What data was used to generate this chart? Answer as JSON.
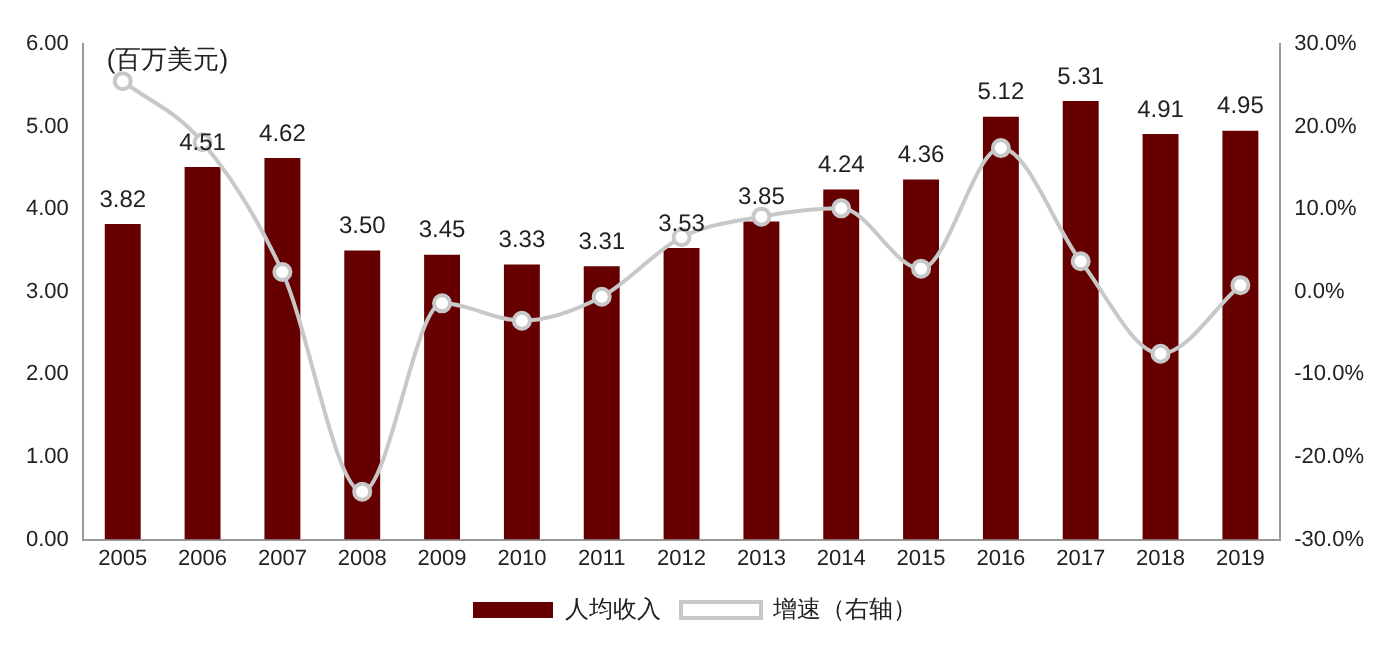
{
  "chart_data": {
    "type": "bar",
    "ylabel": "(百万美元)",
    "categories": [
      "2005",
      "2006",
      "2007",
      "2008",
      "2009",
      "2010",
      "2011",
      "2012",
      "2013",
      "2014",
      "2015",
      "2016",
      "2017",
      "2018",
      "2019"
    ],
    "series": [
      {
        "name": "人均收入",
        "color": "#660000",
        "values": [
          3.82,
          4.51,
          4.62,
          3.5,
          3.45,
          3.33,
          3.31,
          3.53,
          3.85,
          4.24,
          4.36,
          5.12,
          5.31,
          4.91,
          4.95
        ],
        "value_labels": [
          "3.82",
          "4.51",
          "4.62",
          "3.50",
          "3.45",
          "3.33",
          "3.31",
          "3.53",
          "3.85",
          "4.24",
          "4.36",
          "5.12",
          "5.31",
          "4.91",
          "4.95"
        ]
      },
      {
        "name": "增速（右轴）",
        "type": "line",
        "axis": "y2",
        "color": "#c8c8c8",
        "marker": "circle",
        "values": [
          25.5,
          18.1,
          2.4,
          -24.2,
          -1.4,
          -3.5,
          -0.6,
          6.6,
          9.1,
          10.1,
          2.8,
          17.4,
          3.7,
          -7.5,
          0.8
        ]
      }
    ],
    "ylim": [
      0,
      6
    ],
    "yticks": [
      {
        "value": 0,
        "label": "0.00"
      },
      {
        "value": 1,
        "label": "1.00"
      },
      {
        "value": 2,
        "label": "2.00"
      },
      {
        "value": 3,
        "label": "3.00"
      },
      {
        "value": 4,
        "label": "4.00"
      },
      {
        "value": 5,
        "label": "5.00"
      },
      {
        "value": 6,
        "label": "6.00"
      }
    ],
    "y2lim": [
      -30,
      30
    ],
    "y2ticks": [
      {
        "value": -30,
        "label": "-30.0%"
      },
      {
        "value": -20,
        "label": "-20.0%"
      },
      {
        "value": -10,
        "label": "-10.0%"
      },
      {
        "value": 0,
        "label": "0.0%"
      },
      {
        "value": 10,
        "label": "10.0%"
      },
      {
        "value": 20,
        "label": "20.0%"
      },
      {
        "value": 30,
        "label": "30.0%"
      }
    ],
    "grid": false,
    "legend": "bottom"
  }
}
